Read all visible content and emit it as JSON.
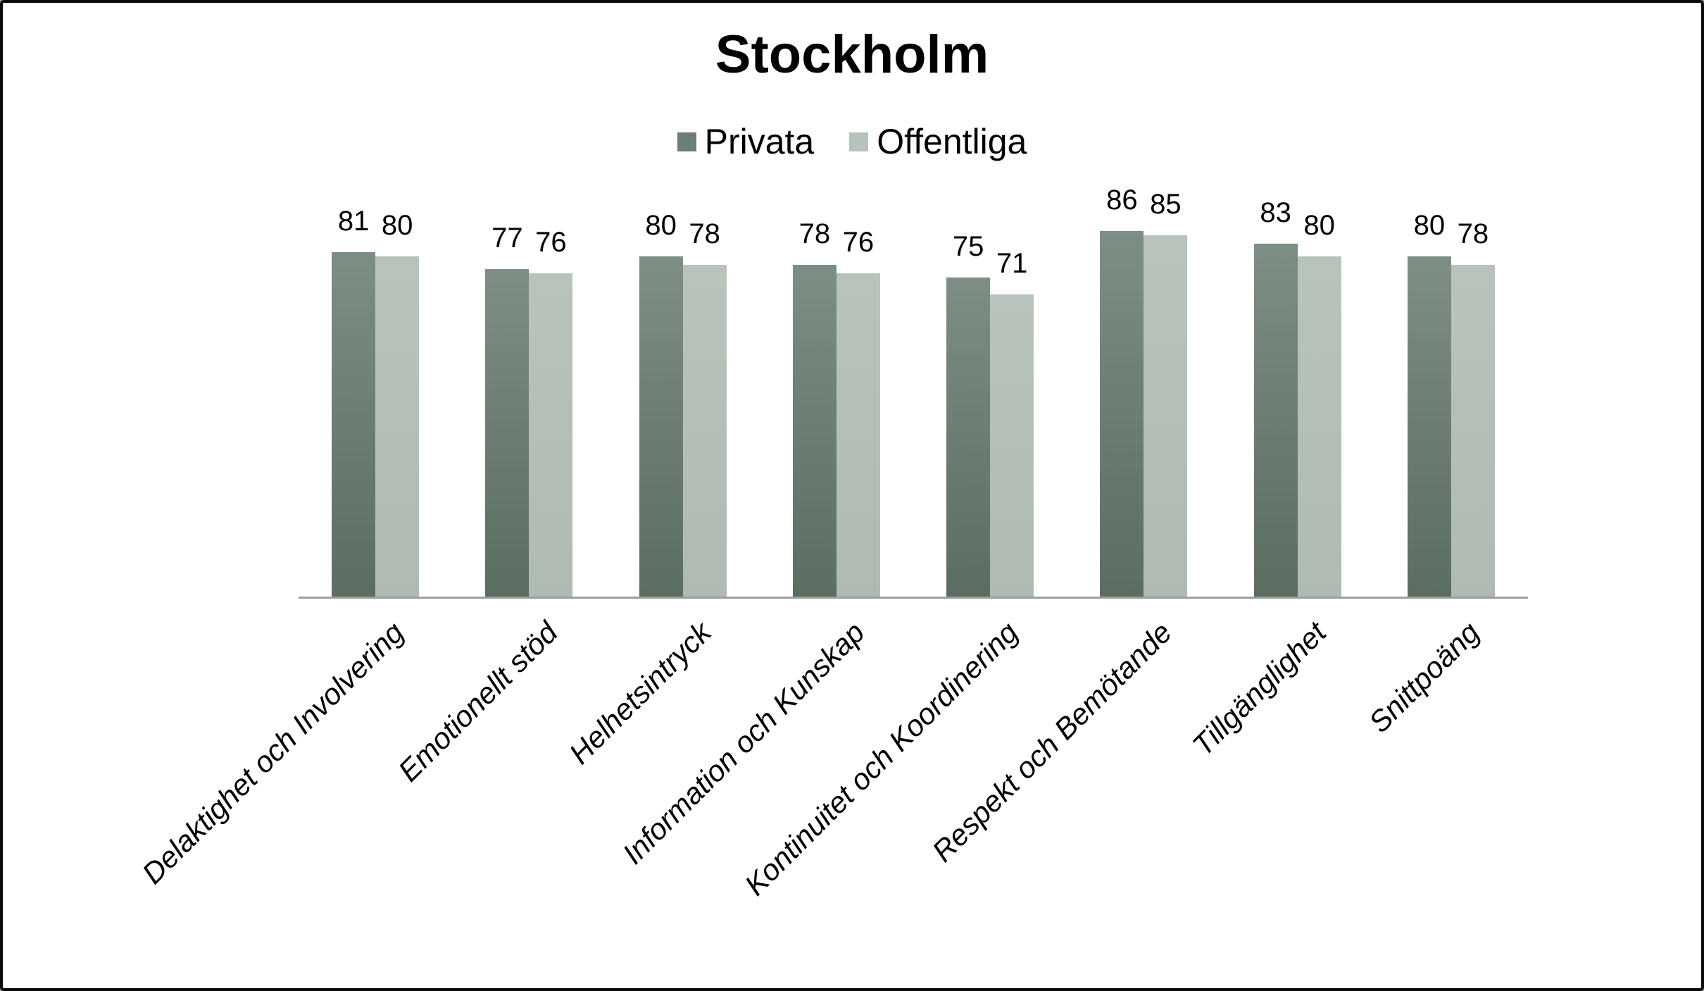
{
  "title": "Stockholm",
  "chart_data": {
    "type": "bar",
    "title": "Stockholm",
    "categories": [
      "Delaktighet och Involvering",
      "Emotionellt stöd",
      "Helhetsintryck",
      "Information och Kunskap",
      "Kontinuitet och Koordinering",
      "Respekt och Bemötande",
      "Tillgänglighet",
      "Snittpoäng"
    ],
    "series": [
      {
        "name": "Privata",
        "values": [
          81,
          77,
          80,
          78,
          75,
          86,
          83,
          80
        ],
        "color": "#6b7f73",
        "gradient_top": "#7d8e84",
        "gradient_bottom": "#5b6e62"
      },
      {
        "name": "Offentliga",
        "values": [
          80,
          76,
          78,
          76,
          71,
          85,
          80,
          78
        ],
        "color": "#b5c3ba",
        "gradient_top": "#b8c4bb",
        "gradient_bottom": "#afbbb2"
      }
    ],
    "ylim": [
      0,
      100
    ],
    "grid": false,
    "y_axis_visible": false,
    "data_labels": true,
    "legend_position": "top",
    "axis_line_color": "#9e9e9e",
    "xlabel": "",
    "ylabel": ""
  }
}
